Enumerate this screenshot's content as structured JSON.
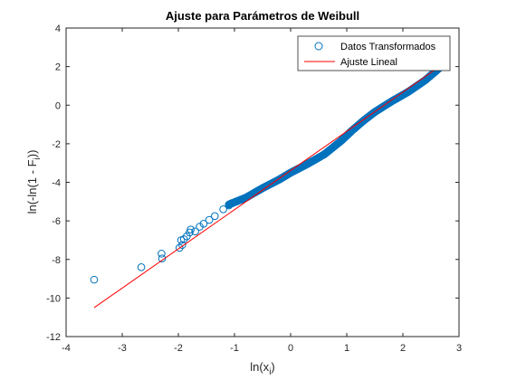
{
  "chart_data": {
    "type": "scatter",
    "title": "Ajuste para Parámetros de Weibull",
    "xlabel": {
      "main": "ln(x",
      "sub": "i",
      "tail": ")"
    },
    "ylabel": {
      "main": "ln(-ln(1 - F",
      "sub": "i",
      "tail": "))"
    },
    "xlim": [
      -4,
      3
    ],
    "ylim": [
      -12,
      4
    ],
    "xticks": [
      -4,
      -3,
      -2,
      -1,
      0,
      1,
      2,
      3
    ],
    "yticks": [
      -12,
      -10,
      -8,
      -6,
      -4,
      -2,
      0,
      2,
      4
    ],
    "grid": false,
    "legend": {
      "position": "top-right",
      "entries": [
        "Datos Transformados",
        "Ajuste Lineal"
      ]
    },
    "colors": {
      "points": "#0072BD",
      "fit": "#FF0000"
    },
    "series": [
      {
        "name": "Datos Transformados",
        "kind": "markers",
        "dense_points": [
          [
            -3.5,
            -9.05
          ],
          [
            -2.66,
            -8.4
          ],
          [
            -2.3,
            -7.7
          ],
          [
            -2.29,
            -7.95
          ],
          [
            -1.98,
            -7.4
          ],
          [
            -1.95,
            -7.0
          ],
          [
            -1.93,
            -7.25
          ],
          [
            -1.9,
            -6.95
          ],
          [
            -1.85,
            -6.8
          ],
          [
            -1.8,
            -6.6
          ],
          [
            -1.78,
            -6.45
          ],
          [
            -1.7,
            -6.55
          ],
          [
            -1.62,
            -6.3
          ],
          [
            -1.55,
            -6.15
          ],
          [
            -1.45,
            -5.95
          ],
          [
            -1.35,
            -5.75
          ],
          [
            -1.2,
            -5.4
          ],
          [
            -1.1,
            -5.2
          ]
        ],
        "curve": [
          [
            -1.1,
            -5.15
          ],
          [
            -0.8,
            -4.8
          ],
          [
            -0.5,
            -4.3
          ],
          [
            -0.2,
            -3.85
          ],
          [
            0.0,
            -3.5
          ],
          [
            0.3,
            -3.05
          ],
          [
            0.6,
            -2.55
          ],
          [
            0.9,
            -1.85
          ],
          [
            1.1,
            -1.3
          ],
          [
            1.3,
            -0.8
          ],
          [
            1.5,
            -0.35
          ],
          [
            1.8,
            0.2
          ],
          [
            2.1,
            0.7
          ],
          [
            2.4,
            1.3
          ],
          [
            2.6,
            1.8
          ],
          [
            2.75,
            2.2
          ]
        ]
      },
      {
        "name": "Ajuste Lineal",
        "kind": "line",
        "x": [
          -3.5,
          2.75
        ],
        "y": [
          -10.5,
          2.2
        ]
      }
    ]
  }
}
